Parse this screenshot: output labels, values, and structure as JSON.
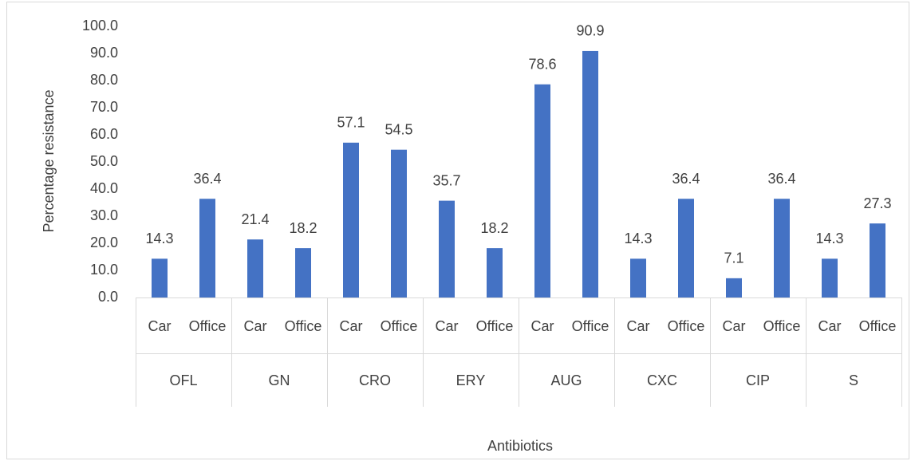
{
  "chart_data": {
    "type": "bar",
    "y_axis_label": "Percentage resistance",
    "x_axis_label": "Antibiotics",
    "categories": [
      "Car",
      "Office",
      "Car",
      "Office",
      "Car",
      "Office",
      "Car",
      "Office",
      "Car",
      "Office",
      "Car",
      "Office",
      "Car",
      "Office",
      "Car",
      "Office"
    ],
    "groups": [
      "OFL",
      "GN",
      "CRO",
      "ERY",
      "AUG",
      "CXC",
      "CIP",
      "S"
    ],
    "values": [
      14.3,
      36.4,
      21.4,
      18.2,
      57.1,
      54.5,
      35.7,
      18.2,
      78.6,
      90.9,
      14.3,
      36.4,
      7.1,
      36.4,
      14.3,
      27.3
    ],
    "color": "#4472c4",
    "ylim": [
      0,
      100
    ],
    "yticks": [
      {
        "value": 0,
        "label": "0.0"
      },
      {
        "value": 10,
        "label": "10.0"
      },
      {
        "value": 20,
        "label": "20.0"
      },
      {
        "value": 30,
        "label": "30.0"
      },
      {
        "value": 40,
        "label": "40.0"
      },
      {
        "value": 50,
        "label": "50.0"
      },
      {
        "value": 60,
        "label": "60.0"
      },
      {
        "value": 70,
        "label": "70.0"
      },
      {
        "value": 80,
        "label": "80.0"
      },
      {
        "value": 90,
        "label": "90.0"
      },
      {
        "value": 100,
        "label": "100.0"
      }
    ],
    "grid": false
  }
}
